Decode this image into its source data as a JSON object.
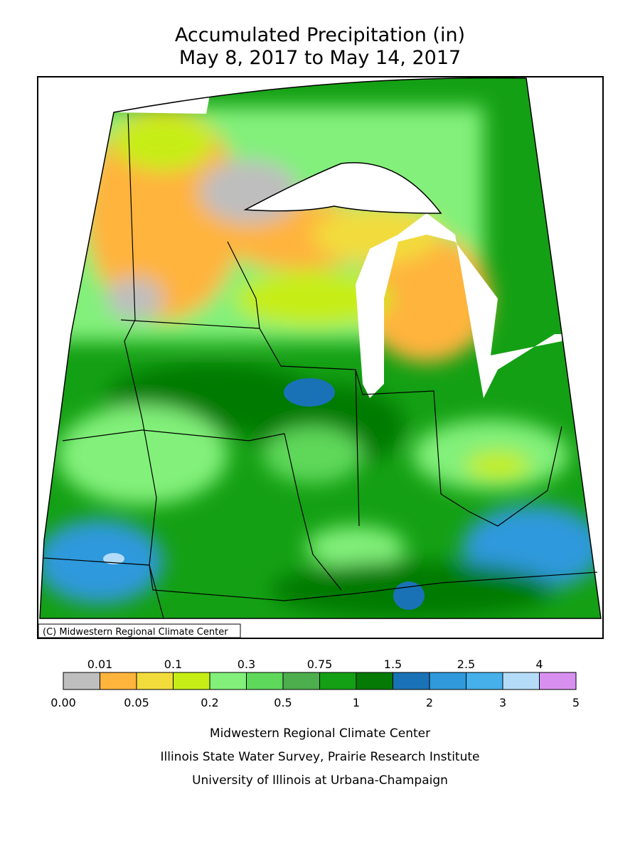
{
  "header": {
    "title": "Accumulated Precipitation (in)",
    "subtitle": "May 8, 2017 to May 14, 2017"
  },
  "map": {
    "copyright": "(C) Midwestern Regional Climate Center"
  },
  "legend": {
    "labels": [
      "0.00",
      "0.01",
      "0.05",
      "0.1",
      "0.2",
      "0.3",
      "0.5",
      "0.75",
      "1",
      "1.5",
      "2",
      "2.5",
      "3",
      "4",
      "5"
    ],
    "colors": [
      "#bebebe",
      "#ffb43c",
      "#f2dc3c",
      "#c6ee16",
      "#82f07a",
      "#5ed85a",
      "#4cae4c",
      "#14a014",
      "#057a05",
      "#1a72b6",
      "#2f99dc",
      "#45b0ea",
      "#b4dcf8",
      "#d890f0"
    ]
  },
  "credits": [
    "Midwestern Regional Climate Center",
    "Illinois State Water Survey, Prairie Research Institute",
    "University of Illinois at Urbana-Champaign"
  ]
}
